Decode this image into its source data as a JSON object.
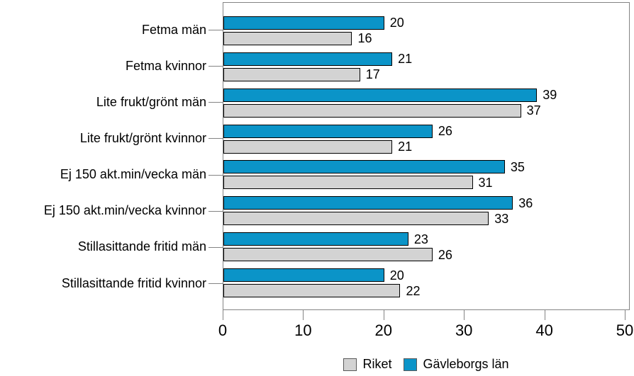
{
  "chart_data": {
    "type": "bar",
    "orientation": "horizontal",
    "categories": [
      "Fetma män",
      "Fetma kvinnor",
      "Lite frukt/grönt män",
      "Lite frukt/grönt kvinnor",
      "Ej 150 akt.min/vecka män",
      "Ej 150 akt.min/vecka kvinnor",
      "Stillasittande fritid män",
      "Stillasittande fritid kvinnor"
    ],
    "series": [
      {
        "name": "Gävleborgs län",
        "color": "#0b94c8",
        "values": [
          20,
          21,
          39,
          26,
          35,
          36,
          23,
          20
        ]
      },
      {
        "name": "Riket",
        "color": "#d3d3d3",
        "values": [
          16,
          17,
          37,
          21,
          31,
          33,
          26,
          22
        ]
      }
    ],
    "xlim": [
      0,
      50
    ],
    "x_ticks": [
      0,
      10,
      20,
      30,
      40,
      50
    ],
    "grid": false,
    "data_labels": true,
    "legend_position": "bottom",
    "legend_items": [
      {
        "label": "Riket",
        "color": "#d3d3d3"
      },
      {
        "label": "Gävleborgs län",
        "color": "#0b94c8"
      }
    ]
  },
  "colors": {
    "plot_border": "#848484",
    "axis_tick": "#848484",
    "bar_border": "#000000",
    "text": "#000000"
  }
}
